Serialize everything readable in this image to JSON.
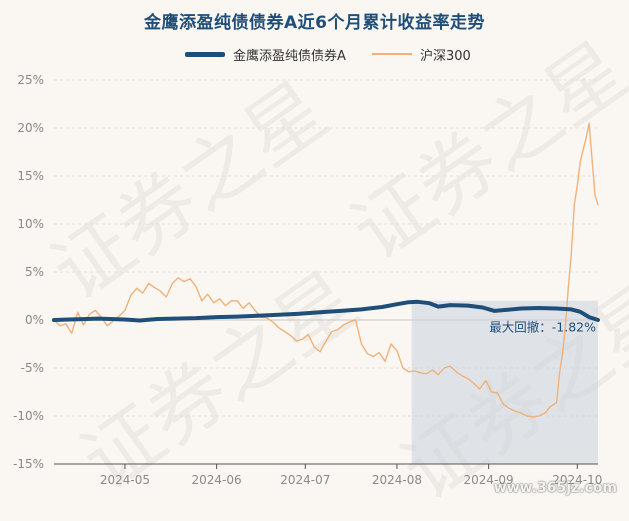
{
  "chart_data": {
    "type": "line",
    "title": "金鹰添盈纯债债券A近6个月累计收益率走势",
    "y_ticks": [
      "25%",
      "20%",
      "15%",
      "10%",
      "5%",
      "0%",
      "-5%",
      "-10%",
      "-15%"
    ],
    "ylim": [
      -15,
      25
    ],
    "x_ticks": [
      {
        "label": "2024-05",
        "date": "2024-05-01"
      },
      {
        "label": "2024-06",
        "date": "2024-06-01"
      },
      {
        "label": "2024-07",
        "date": "2024-07-01"
      },
      {
        "label": "2024-08",
        "date": "2024-08-01"
      },
      {
        "label": "2024-09",
        "date": "2024-09-01"
      },
      {
        "label": "2024-10",
        "date": "2024-10-01"
      }
    ],
    "xlim": [
      "2024-04-07",
      "2024-10-08"
    ],
    "grid": true,
    "legend_position": "top-center",
    "drawdown_start": "2024-08-06",
    "drawdown_label": "最大回撤：-1.82%",
    "series": [
      {
        "name": "金鹰添盈纯债债券A",
        "color": "#1f4e79",
        "points": [
          [
            "2024-04-07",
            0.0
          ],
          [
            "2024-04-12",
            0.05
          ],
          [
            "2024-04-18",
            0.1
          ],
          [
            "2024-04-22",
            0.15
          ],
          [
            "2024-04-26",
            0.1
          ],
          [
            "2024-05-01",
            0.05
          ],
          [
            "2024-05-06",
            -0.05
          ],
          [
            "2024-05-12",
            0.1
          ],
          [
            "2024-05-18",
            0.15
          ],
          [
            "2024-05-25",
            0.2
          ],
          [
            "2024-06-01",
            0.3
          ],
          [
            "2024-06-08",
            0.35
          ],
          [
            "2024-06-15",
            0.45
          ],
          [
            "2024-06-22",
            0.55
          ],
          [
            "2024-06-29",
            0.65
          ],
          [
            "2024-07-06",
            0.8
          ],
          [
            "2024-07-13",
            0.95
          ],
          [
            "2024-07-20",
            1.1
          ],
          [
            "2024-07-27",
            1.35
          ],
          [
            "2024-08-01",
            1.65
          ],
          [
            "2024-08-05",
            1.85
          ],
          [
            "2024-08-08",
            1.9
          ],
          [
            "2024-08-12",
            1.75
          ],
          [
            "2024-08-15",
            1.4
          ],
          [
            "2024-08-19",
            1.55
          ],
          [
            "2024-08-25",
            1.5
          ],
          [
            "2024-08-30",
            1.3
          ],
          [
            "2024-09-03",
            0.95
          ],
          [
            "2024-09-07",
            1.05
          ],
          [
            "2024-09-12",
            1.2
          ],
          [
            "2024-09-18",
            1.25
          ],
          [
            "2024-09-24",
            1.2
          ],
          [
            "2024-09-29",
            1.1
          ],
          [
            "2024-10-02",
            0.85
          ],
          [
            "2024-10-05",
            0.3
          ],
          [
            "2024-10-08",
            0.0
          ]
        ]
      },
      {
        "name": "沪深300",
        "color": "#f0b27a",
        "points": [
          [
            "2024-04-07",
            0.0
          ],
          [
            "2024-04-09",
            -0.6
          ],
          [
            "2024-04-11",
            -0.4
          ],
          [
            "2024-04-13",
            -1.4
          ],
          [
            "2024-04-15",
            0.8
          ],
          [
            "2024-04-17",
            -0.5
          ],
          [
            "2024-04-19",
            0.6
          ],
          [
            "2024-04-21",
            1.0
          ],
          [
            "2024-04-23",
            0.3
          ],
          [
            "2024-04-25",
            -0.6
          ],
          [
            "2024-04-27",
            -0.1
          ],
          [
            "2024-04-29",
            0.4
          ],
          [
            "2024-05-01",
            1.0
          ],
          [
            "2024-05-03",
            2.6
          ],
          [
            "2024-05-05",
            3.3
          ],
          [
            "2024-05-07",
            2.8
          ],
          [
            "2024-05-09",
            3.8
          ],
          [
            "2024-05-11",
            3.4
          ],
          [
            "2024-05-13",
            3.0
          ],
          [
            "2024-05-15",
            2.4
          ],
          [
            "2024-05-17",
            3.8
          ],
          [
            "2024-05-19",
            4.4
          ],
          [
            "2024-05-21",
            4.0
          ],
          [
            "2024-05-23",
            4.3
          ],
          [
            "2024-05-25",
            3.5
          ],
          [
            "2024-05-27",
            2.0
          ],
          [
            "2024-05-29",
            2.7
          ],
          [
            "2024-05-31",
            1.8
          ],
          [
            "2024-06-02",
            2.2
          ],
          [
            "2024-06-04",
            1.5
          ],
          [
            "2024-06-06",
            2.0
          ],
          [
            "2024-06-08",
            2.0
          ],
          [
            "2024-06-10",
            1.2
          ],
          [
            "2024-06-12",
            1.8
          ],
          [
            "2024-06-14",
            1.0
          ],
          [
            "2024-06-16",
            0.3
          ],
          [
            "2024-06-18",
            0.2
          ],
          [
            "2024-06-20",
            -0.2
          ],
          [
            "2024-06-22",
            -0.8
          ],
          [
            "2024-06-24",
            -1.2
          ],
          [
            "2024-06-26",
            -1.6
          ],
          [
            "2024-06-28",
            -2.2
          ],
          [
            "2024-06-30",
            -2.0
          ],
          [
            "2024-07-02",
            -1.5
          ],
          [
            "2024-07-04",
            -2.8
          ],
          [
            "2024-07-06",
            -3.3
          ],
          [
            "2024-07-08",
            -2.2
          ],
          [
            "2024-07-10",
            -1.2
          ],
          [
            "2024-07-12",
            -1.0
          ],
          [
            "2024-07-14",
            -0.5
          ],
          [
            "2024-07-16",
            -0.2
          ],
          [
            "2024-07-18",
            0.0
          ],
          [
            "2024-07-20",
            -2.5
          ],
          [
            "2024-07-22",
            -3.5
          ],
          [
            "2024-07-24",
            -3.8
          ],
          [
            "2024-07-26",
            -3.4
          ],
          [
            "2024-07-28",
            -4.3
          ],
          [
            "2024-07-30",
            -2.5
          ],
          [
            "2024-08-01",
            -3.2
          ],
          [
            "2024-08-03",
            -5.0
          ],
          [
            "2024-08-05",
            -5.4
          ],
          [
            "2024-08-07",
            -5.3
          ],
          [
            "2024-08-09",
            -5.5
          ],
          [
            "2024-08-11",
            -5.6
          ],
          [
            "2024-08-13",
            -5.2
          ],
          [
            "2024-08-15",
            -5.7
          ],
          [
            "2024-08-17",
            -5.0
          ],
          [
            "2024-08-19",
            -4.8
          ],
          [
            "2024-08-21",
            -5.4
          ],
          [
            "2024-08-23",
            -5.8
          ],
          [
            "2024-08-25",
            -6.1
          ],
          [
            "2024-08-27",
            -6.6
          ],
          [
            "2024-08-29",
            -7.2
          ],
          [
            "2024-08-31",
            -6.3
          ],
          [
            "2024-09-02",
            -7.5
          ],
          [
            "2024-09-04",
            -7.6
          ],
          [
            "2024-09-06",
            -8.8
          ],
          [
            "2024-09-08",
            -9.2
          ],
          [
            "2024-09-10",
            -9.5
          ],
          [
            "2024-09-12",
            -9.7
          ],
          [
            "2024-09-14",
            -10.0
          ],
          [
            "2024-09-16",
            -10.1
          ],
          [
            "2024-09-18",
            -10.0
          ],
          [
            "2024-09-20",
            -9.7
          ],
          [
            "2024-09-22",
            -9.0
          ],
          [
            "2024-09-24",
            -8.6
          ],
          [
            "2024-09-25",
            -5.5
          ],
          [
            "2024-09-26",
            -3.5
          ],
          [
            "2024-09-27",
            -0.5
          ],
          [
            "2024-09-28",
            3.5
          ],
          [
            "2024-09-29",
            7.0
          ],
          [
            "2024-09-30",
            12.0
          ],
          [
            "2024-10-01",
            14.0
          ],
          [
            "2024-10-02",
            16.5
          ],
          [
            "2024-10-04",
            19.0
          ],
          [
            "2024-10-05",
            20.5
          ],
          [
            "2024-10-07",
            13.0
          ],
          [
            "2024-10-08",
            12.0
          ]
        ]
      }
    ]
  },
  "footer": {
    "site": "www.365jz.com"
  }
}
